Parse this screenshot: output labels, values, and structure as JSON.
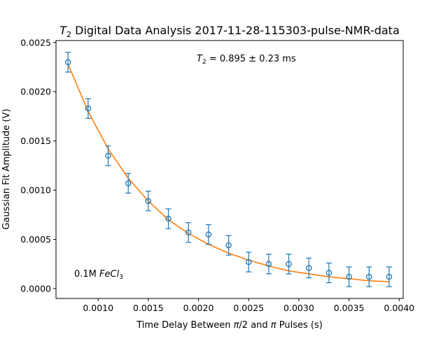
{
  "chart_data": {
    "type": "scatter",
    "title": {
      "prefix": "T",
      "sub": "2",
      "rest": " Digital Data Analysis 2017-11-28-115303-pulse-NMR-data"
    },
    "xlabel": {
      "a": "Time Delay Between ",
      "b": "π",
      "c": "/2 and ",
      "d": "π",
      "e": " Pulses (s)"
    },
    "ylabel": "Gaussian Fit Amplitude (V)",
    "xlim": [
      0.00058,
      0.00404
    ],
    "ylim": [
      -0.0001,
      0.00252
    ],
    "x_ticks": [
      {
        "value": 0.001,
        "label": "0.0010"
      },
      {
        "value": 0.0015,
        "label": "0.0015"
      },
      {
        "value": 0.002,
        "label": "0.0020"
      },
      {
        "value": 0.0025,
        "label": "0.0025"
      },
      {
        "value": 0.003,
        "label": "0.0030"
      },
      {
        "value": 0.0035,
        "label": "0.0035"
      },
      {
        "value": 0.004,
        "label": "0.0040"
      }
    ],
    "y_ticks": [
      {
        "value": 0.0,
        "label": "0.0000"
      },
      {
        "value": 0.0005,
        "label": "0.0005"
      },
      {
        "value": 0.001,
        "label": "0.0010"
      },
      {
        "value": 0.0015,
        "label": "0.0015"
      },
      {
        "value": 0.002,
        "label": "0.0020"
      },
      {
        "value": 0.0025,
        "label": "0.0025"
      }
    ],
    "series": [
      {
        "kind": "errorbar",
        "marker": "circle-open",
        "color": "#1f77b4",
        "x": [
          0.0007,
          0.0009,
          0.0011,
          0.0013,
          0.0015,
          0.0017,
          0.0019,
          0.0021,
          0.0023,
          0.0025,
          0.0027,
          0.0029,
          0.0031,
          0.0033,
          0.0035,
          0.0037,
          0.0039
        ],
        "y": [
          0.0023,
          0.00183,
          0.00135,
          0.00107,
          0.00089,
          0.00071,
          0.00057,
          0.00055,
          0.00044,
          0.00027,
          0.00025,
          0.00025,
          0.00021,
          0.00016,
          0.00012,
          0.00012,
          0.00012
        ],
        "yerr": 0.0001
      },
      {
        "kind": "fit-line",
        "color": "#ff7f0e",
        "x": [
          0.0007,
          0.0009,
          0.0011,
          0.0013,
          0.0015,
          0.0017,
          0.0019,
          0.0021,
          0.0023,
          0.0025,
          0.0027,
          0.0029,
          0.0031,
          0.0033,
          0.0035,
          0.0037,
          0.0039
        ],
        "y": [
          0.00228,
          0.0018,
          0.00142,
          0.00112,
          0.00089,
          0.0007,
          0.00056,
          0.00045,
          0.00036,
          0.00029,
          0.00023,
          0.00018,
          0.00015,
          0.00012,
          0.0001,
          8e-05,
          7e-05
        ]
      }
    ],
    "annotations": {
      "t2": {
        "prefix": "T",
        "sub": "2",
        "rest": " = 0.895 ± 0.23 ms"
      },
      "sample": {
        "prefix": "0.1M ",
        "italic": "FeCl",
        "sub": "3"
      }
    }
  }
}
